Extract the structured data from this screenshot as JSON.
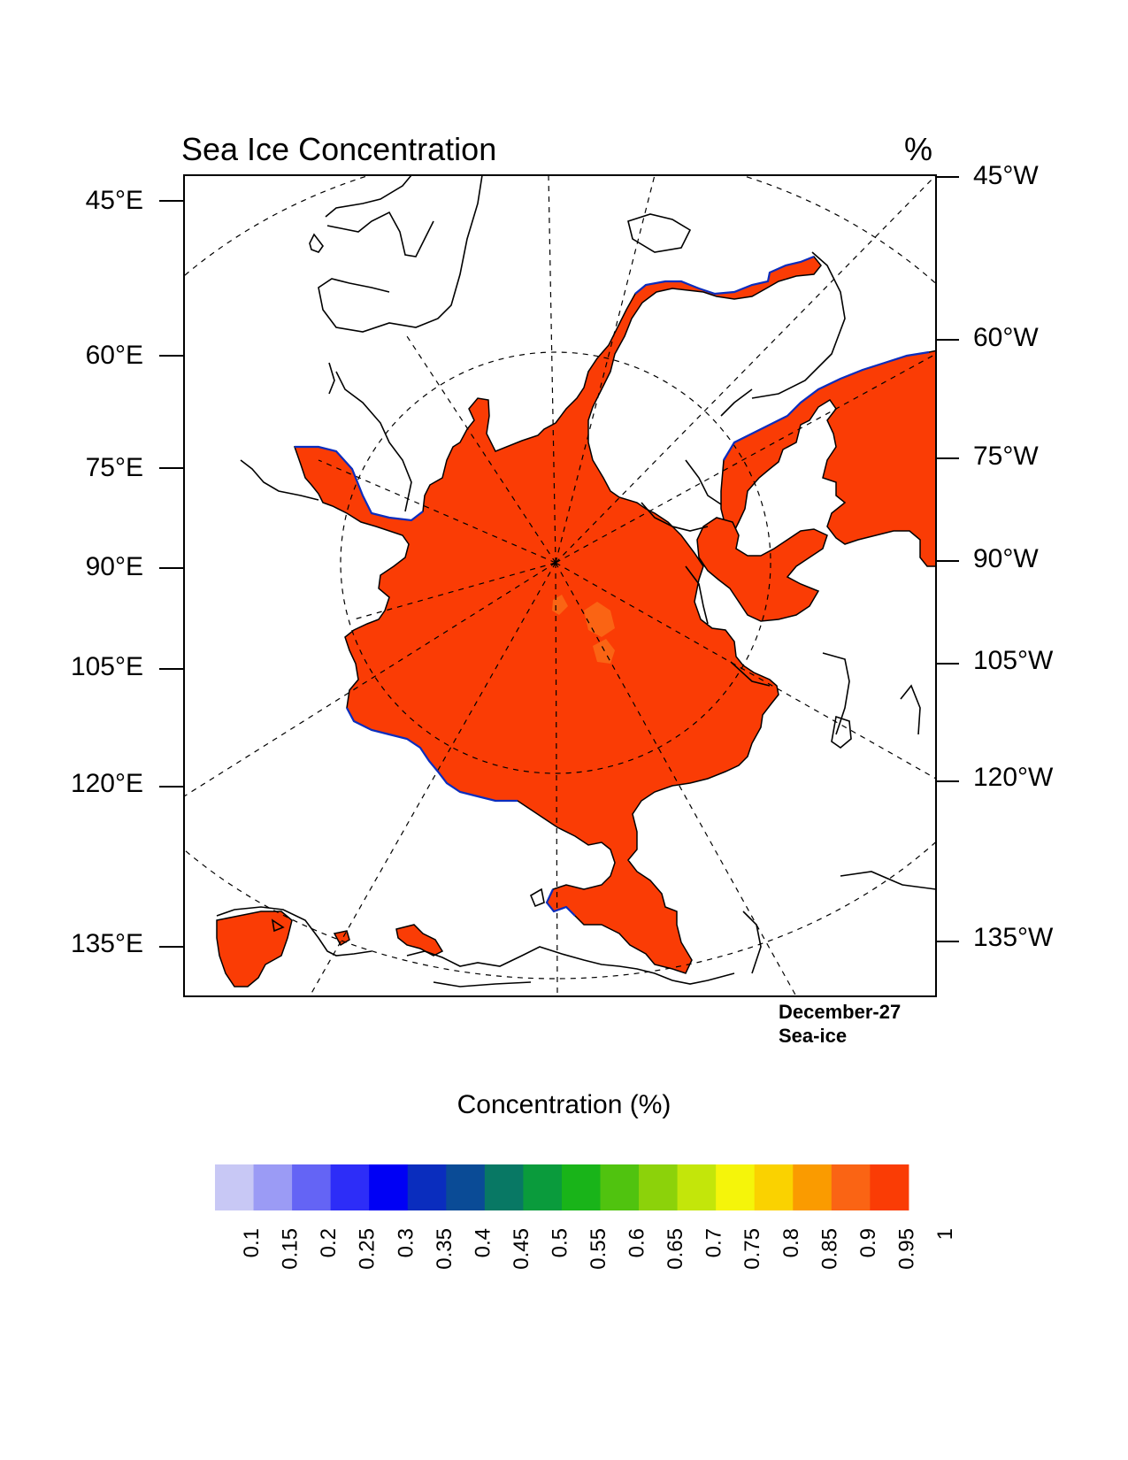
{
  "title": "Sea Ice Concentration",
  "units_label": "%",
  "left_lon_labels": [
    "45°E",
    "60°E",
    "75°E",
    "90°E",
    "105°E",
    "120°E",
    "135°E"
  ],
  "right_lon_labels": [
    "45°W",
    "60°W",
    "75°W",
    "90°W",
    "105°W",
    "120°W",
    "135°W"
  ],
  "info_lines": [
    "December-27",
    "Sea-ice"
  ],
  "colorbar": {
    "title": "Concentration (%)",
    "levels": [
      "0.1",
      "0.15",
      "0.2",
      "0.25",
      "0.3",
      "0.35",
      "0.4",
      "0.45",
      "0.5",
      "0.55",
      "0.6",
      "0.65",
      "0.7",
      "0.75",
      "0.8",
      "0.85",
      "0.9",
      "0.95",
      "1"
    ],
    "colors": [
      "#c8c8f5",
      "#9b9bf5",
      "#6464f5",
      "#2d2df8",
      "#0000f5",
      "#0a2dbe",
      "#0a4b96",
      "#087864",
      "#0a9b3c",
      "#19b419",
      "#50c30f",
      "#8cd20a",
      "#c3e60a",
      "#f5f50a",
      "#fad200",
      "#fa9b00",
      "#fa6414",
      "#fa3c05"
    ]
  },
  "colors": {
    "ice_fill": "#fa3c05",
    "ice_partial": "#fa6414",
    "coast": "#000000",
    "ice_edge": "#0a2dbe"
  }
}
